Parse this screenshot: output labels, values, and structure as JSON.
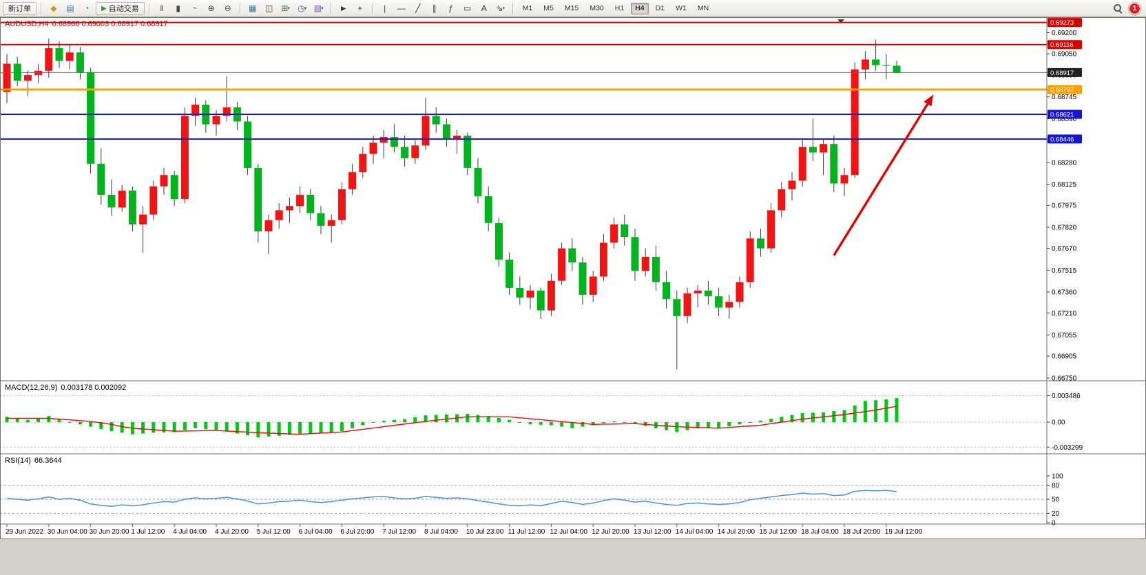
{
  "toolbar": {
    "items": [
      {
        "type": "button",
        "name": "new-order-button",
        "label": "新订单"
      },
      {
        "type": "sep"
      },
      {
        "type": "icon",
        "name": "market-watch-icon",
        "glyph": "◆",
        "color": "#d09a1e"
      },
      {
        "type": "icon",
        "name": "data-window-icon",
        "glyph": "▤",
        "color": "#3a6ea5"
      },
      {
        "type": "icon",
        "name": "navigator-icon",
        "glyph": "◔",
        "color": "#2e8b8b"
      },
      {
        "type": "button",
        "name": "autotrading-button",
        "glyph": "▶",
        "glyph_color": "#21a121",
        "label": "自动交易"
      },
      {
        "type": "sep"
      },
      {
        "type": "icon",
        "name": "bar-chart-icon",
        "glyph": "‖",
        "color": "#444444"
      },
      {
        "type": "icon",
        "name": "candlestick-chart-icon",
        "glyph": "▮",
        "color": "#444444"
      },
      {
        "type": "icon",
        "name": "line-chart-icon",
        "glyph": "~",
        "color": "#444444"
      },
      {
        "type": "icon",
        "name": "zoom-in-icon",
        "glyph": "⊕",
        "color": "#444444"
      },
      {
        "type": "icon",
        "name": "zoom-out-icon",
        "glyph": "⊖",
        "color": "#444444"
      },
      {
        "type": "sep"
      },
      {
        "type": "icon",
        "name": "tile-windows-icon",
        "glyph": "▦",
        "color": "#3a6ea5"
      },
      {
        "type": "icon",
        "name": "cascade-windows-icon",
        "glyph": "◫",
        "color": "#444444"
      },
      {
        "type": "icon",
        "name": "new-chart-icon",
        "glyph": "⊞",
        "color": "#2a7d2a",
        "caret": true
      },
      {
        "type": "icon",
        "name": "period-icon",
        "glyph": "◷",
        "color": "#2e6da4",
        "caret": true
      },
      {
        "type": "icon",
        "name": "template-icon",
        "glyph": "▧",
        "color": "#6a5acd",
        "caret": true
      },
      {
        "type": "sep"
      },
      {
        "type": "icon",
        "name": "cursor-icon",
        "glyph": "►",
        "color": "#333333"
      },
      {
        "type": "icon",
        "name": "crosshair-icon",
        "glyph": "+",
        "color": "#333333"
      },
      {
        "type": "sep"
      },
      {
        "type": "icon",
        "name": "vertical-line-icon",
        "glyph": "|",
        "color": "#333333"
      },
      {
        "type": "icon",
        "name": "horizontal-line-icon",
        "glyph": "—",
        "color": "#333333"
      },
      {
        "type": "icon",
        "name": "trendline-icon",
        "glyph": "╱",
        "color": "#333333"
      },
      {
        "type": "icon",
        "name": "channel-icon",
        "glyph": "∥",
        "color": "#333333"
      },
      {
        "type": "icon",
        "name": "fibonacci-icon",
        "glyph": "ƒ",
        "color": "#333333"
      },
      {
        "type": "icon",
        "name": "shapes-icon",
        "glyph": "▭",
        "color": "#333333"
      },
      {
        "type": "icon",
        "name": "text-label-icon",
        "glyph": "A",
        "color": "#333333"
      },
      {
        "type": "icon",
        "name": "arrows-icon",
        "glyph": "⇘",
        "color": "#333333",
        "caret": true
      },
      {
        "type": "sep"
      },
      {
        "type": "timeframes"
      }
    ],
    "timeframes": [
      "M1",
      "M5",
      "M15",
      "M30",
      "H1",
      "H4",
      "D1",
      "W1",
      "MN"
    ],
    "active_timeframe": "H4",
    "notification_count": "1"
  },
  "chart": {
    "title_symbol": "AUDUSD,H4",
    "title_ohlc": "0.68966 0.69003 0.68917 0.68917",
    "macd_label": "MACD(12,26,9)",
    "macd_values": "0.003178 0.002092",
    "rsi_label": "RSI(14)",
    "rsi_value": "66.3644"
  },
  "chart_data": {
    "type": "candlestick+indicators",
    "symbol": "AUDUSD",
    "period": "H4",
    "colors": {
      "bull": "#f01414",
      "bear": "#00b41e",
      "wick": "#3a3a3a",
      "hist": "#00c814",
      "signal": "#ff0000",
      "rsi": "#4a90e2",
      "axis_text": "#000000"
    },
    "price_axis": {
      "range_top": 0.6931,
      "range_bottom": 0.6673,
      "ticks": [
        "0.69200",
        "0.69050",
        "0.68900",
        "0.68745",
        "0.68590",
        "0.68435",
        "0.68280",
        "0.68125",
        "0.67975",
        "0.67820",
        "0.67670",
        "0.67515",
        "0.67360",
        "0.67210",
        "0.67055",
        "0.66905",
        "0.66750"
      ]
    },
    "hlines": [
      {
        "name": "resistance-line-1",
        "price": 0.69273,
        "label": "0.69273",
        "color": "#d40000",
        "width": 2,
        "badge_bg": "#d40000"
      },
      {
        "name": "resistance-line-2",
        "price": 0.69116,
        "label": "0.69116",
        "color": "#d40000",
        "width": 2,
        "badge_bg": "#d40000"
      },
      {
        "name": "current-price-line",
        "price": 0.68917,
        "label": "0.68917",
        "color": "#666666",
        "width": 1,
        "badge_bg": "#222222"
      },
      {
        "name": "pivot-line-orange",
        "price": 0.68797,
        "label": "0.68797",
        "color": "#ffa000",
        "width": 3,
        "badge_bg": "#ffa000"
      },
      {
        "name": "support-line-blue-1",
        "price": 0.68621,
        "label": "0.68621",
        "color": "#1515d0",
        "width": 2,
        "badge_bg": "#1515d0"
      },
      {
        "name": "support-line-blue-2",
        "price": 0.68446,
        "label": "0.68446",
        "color": "#1515d0",
        "width": 2,
        "badge_bg": "#1515d0"
      }
    ],
    "current_price": 0.68917,
    "arrow": {
      "from_index": 79,
      "from_price": 0.6762,
      "to_index": 88.5,
      "to_price": 0.6876,
      "color": "#e00000"
    },
    "time_labels": [
      "29 Jun 2022",
      "30 Jun 04:00",
      "30 Jun 20:00",
      "1 Jul 12:00",
      "4 Jul 04:00",
      "4 Jul 20:00",
      "5 Jul 12:00",
      "6 Jul 04:00",
      "6 Jul 20:00",
      "7 Jul 12:00",
      "8 Jul 04:00",
      "10 Jul 23:00",
      "11 Jul 12:00",
      "12 Jul 04:00",
      "12 Jul 20:00",
      "13 Jul 12:00",
      "14 Jul 04:00",
      "14 Jul 20:00",
      "15 Jul 12:00",
      "18 Jul 04:00",
      "18 Jul 20:00",
      "19 Jul 12:00"
    ],
    "label_every": 4,
    "candles": [
      [
        0.6878,
        0.6905,
        0.687,
        0.6898
      ],
      [
        0.6898,
        0.6903,
        0.6882,
        0.6886
      ],
      [
        0.6886,
        0.6893,
        0.6875,
        0.689
      ],
      [
        0.689,
        0.6898,
        0.6884,
        0.6893
      ],
      [
        0.6893,
        0.6916,
        0.6888,
        0.6909
      ],
      [
        0.6909,
        0.6914,
        0.6895,
        0.69
      ],
      [
        0.69,
        0.6912,
        0.6894,
        0.6906
      ],
      [
        0.6906,
        0.691,
        0.6887,
        0.6892
      ],
      [
        0.6892,
        0.6895,
        0.682,
        0.6827
      ],
      [
        0.6827,
        0.6838,
        0.6798,
        0.6805
      ],
      [
        0.6805,
        0.6816,
        0.679,
        0.6796
      ],
      [
        0.6796,
        0.6812,
        0.6793,
        0.6808
      ],
      [
        0.6808,
        0.6811,
        0.6779,
        0.6784
      ],
      [
        0.6784,
        0.6797,
        0.6764,
        0.6791
      ],
      [
        0.6791,
        0.6815,
        0.6787,
        0.6811
      ],
      [
        0.6811,
        0.6824,
        0.6805,
        0.6819
      ],
      [
        0.6819,
        0.6822,
        0.6797,
        0.6802
      ],
      [
        0.6802,
        0.6867,
        0.6799,
        0.6861
      ],
      [
        0.6861,
        0.6874,
        0.6854,
        0.6869
      ],
      [
        0.6869,
        0.6872,
        0.6849,
        0.6855
      ],
      [
        0.6855,
        0.6865,
        0.6847,
        0.6861
      ],
      [
        0.6861,
        0.6889,
        0.6857,
        0.6867
      ],
      [
        0.6867,
        0.6871,
        0.6851,
        0.6857
      ],
      [
        0.6857,
        0.6861,
        0.6819,
        0.6824
      ],
      [
        0.6824,
        0.6827,
        0.6771,
        0.6779
      ],
      [
        0.6779,
        0.6791,
        0.6763,
        0.6787
      ],
      [
        0.6787,
        0.6799,
        0.6781,
        0.6794
      ],
      [
        0.6794,
        0.6803,
        0.6785,
        0.6797
      ],
      [
        0.6797,
        0.6811,
        0.6792,
        0.6805
      ],
      [
        0.6805,
        0.6809,
        0.6787,
        0.6792
      ],
      [
        0.6792,
        0.6797,
        0.6777,
        0.6783
      ],
      [
        0.6783,
        0.6791,
        0.6771,
        0.6787
      ],
      [
        0.6787,
        0.6814,
        0.6784,
        0.6809
      ],
      [
        0.6809,
        0.6827,
        0.6805,
        0.6821
      ],
      [
        0.6821,
        0.6839,
        0.6817,
        0.6834
      ],
      [
        0.6834,
        0.6847,
        0.6827,
        0.6842
      ],
      [
        0.6842,
        0.6851,
        0.6831,
        0.6846
      ],
      [
        0.6846,
        0.6855,
        0.6835,
        0.6839
      ],
      [
        0.6839,
        0.6847,
        0.6825,
        0.6831
      ],
      [
        0.6831,
        0.6844,
        0.6827,
        0.684
      ],
      [
        0.684,
        0.6874,
        0.6837,
        0.6861
      ],
      [
        0.6861,
        0.6867,
        0.6849,
        0.6855
      ],
      [
        0.6855,
        0.6859,
        0.6839,
        0.6845
      ],
      [
        0.6845,
        0.6851,
        0.6834,
        0.6847
      ],
      [
        0.6847,
        0.6849,
        0.6819,
        0.6824
      ],
      [
        0.6824,
        0.6831,
        0.6799,
        0.6804
      ],
      [
        0.6804,
        0.6811,
        0.6779,
        0.6785
      ],
      [
        0.6785,
        0.6789,
        0.6754,
        0.6759
      ],
      [
        0.6759,
        0.6764,
        0.6734,
        0.6739
      ],
      [
        0.6739,
        0.6747,
        0.6727,
        0.6732
      ],
      [
        0.6732,
        0.6741,
        0.6724,
        0.6737
      ],
      [
        0.6737,
        0.6739,
        0.6717,
        0.6723
      ],
      [
        0.6723,
        0.6749,
        0.6719,
        0.6744
      ],
      [
        0.6744,
        0.6771,
        0.6741,
        0.6767
      ],
      [
        0.6767,
        0.6774,
        0.6751,
        0.6757
      ],
      [
        0.6757,
        0.6761,
        0.6727,
        0.6734
      ],
      [
        0.6734,
        0.6751,
        0.6729,
        0.6747
      ],
      [
        0.6747,
        0.6777,
        0.6744,
        0.6771
      ],
      [
        0.6771,
        0.6789,
        0.6767,
        0.6784
      ],
      [
        0.6784,
        0.6791,
        0.6769,
        0.6775
      ],
      [
        0.6775,
        0.6781,
        0.6744,
        0.6751
      ],
      [
        0.6751,
        0.6767,
        0.6747,
        0.6761
      ],
      [
        0.6761,
        0.6769,
        0.6737,
        0.6743
      ],
      [
        0.6743,
        0.6751,
        0.6724,
        0.6731
      ],
      [
        0.6731,
        0.6737,
        0.6681,
        0.6719
      ],
      [
        0.6719,
        0.6739,
        0.6714,
        0.6735
      ],
      [
        0.6735,
        0.6741,
        0.6725,
        0.6737
      ],
      [
        0.6737,
        0.6744,
        0.6727,
        0.6733
      ],
      [
        0.6733,
        0.6739,
        0.6719,
        0.6725
      ],
      [
        0.6725,
        0.6734,
        0.6717,
        0.6729
      ],
      [
        0.6729,
        0.6747,
        0.6725,
        0.6743
      ],
      [
        0.6743,
        0.6779,
        0.6739,
        0.6774
      ],
      [
        0.6774,
        0.6781,
        0.6761,
        0.6767
      ],
      [
        0.6767,
        0.6799,
        0.6764,
        0.6794
      ],
      [
        0.6794,
        0.6814,
        0.6789,
        0.6809
      ],
      [
        0.6809,
        0.6821,
        0.6801,
        0.6815
      ],
      [
        0.6815,
        0.6844,
        0.6811,
        0.6839
      ],
      [
        0.6839,
        0.6859,
        0.6829,
        0.6835
      ],
      [
        0.6835,
        0.6845,
        0.6819,
        0.6841
      ],
      [
        0.6841,
        0.6847,
        0.6807,
        0.6813
      ],
      [
        0.6813,
        0.6824,
        0.6804,
        0.6819
      ],
      [
        0.6819,
        0.6899,
        0.6817,
        0.6894
      ],
      [
        0.6894,
        0.6907,
        0.6887,
        0.6901
      ],
      [
        0.6901,
        0.6915,
        0.6893,
        0.6897
      ],
      [
        0.6897,
        0.6905,
        0.6887,
        0.68966
      ],
      [
        0.68966,
        0.69003,
        0.68917,
        0.68917
      ]
    ],
    "macd": {
      "params": "12,26,9",
      "axis": [
        "0.003486",
        "0.00",
        "-0.003299"
      ],
      "histogram": [
        0.0007,
        0.0005,
        0.0003,
        0.00055,
        0.0008,
        0.0004,
        0,
        -0.0003,
        -0.0006,
        -0.0009,
        -0.0012,
        -0.0014,
        -0.0016,
        -0.0015,
        -0.0014,
        -0.00135,
        -0.0013,
        -0.00105,
        -0.0008,
        -0.0009,
        -0.001,
        -0.00125,
        -0.0015,
        -0.00175,
        -0.002,
        -0.0019,
        -0.0018,
        -0.0017,
        -0.0016,
        -0.00155,
        -0.0015,
        -0.00135,
        -0.0012,
        -0.0008,
        -0.0004,
        -0.0001,
        0.0002,
        0.0003,
        0.0004,
        0.00065,
        0.0009,
        0.00095,
        0.001,
        0.00105,
        0.0011,
        0.00095,
        0.0008,
        0.00055,
        0.0003,
        0,
        -0.0003,
        -0.00035,
        -0.0004,
        -0.0006,
        -0.0008,
        -0.0006,
        -0.0004,
        -0.00015,
        0.0001,
        -5e-05,
        -0.0002,
        -0.0005,
        -0.0008,
        -0.00105,
        -0.0013,
        -0.00105,
        -0.0008,
        -0.0008,
        -0.0008,
        -0.00055,
        -0.0003,
        -5e-05,
        0.0002,
        0.00045,
        0.0007,
        0.00095,
        0.0012,
        0.00125,
        0.0013,
        0.00145,
        0.0016,
        0.0022,
        0.0028,
        0.0029,
        0.003,
        0.003178
      ],
      "signal": [
        0.0005,
        0.0005,
        0.0005,
        0.0005,
        0.0005,
        0.0004,
        0.0003,
        0.0002,
        0.0001,
        -0.0001,
        -0.0003,
        -0.0006,
        -0.0008,
        -0.0009,
        -0.001,
        -0.0011,
        -0.0012,
        -0.00118,
        -0.00115,
        -0.00112,
        -0.0011,
        -0.00118,
        -0.00125,
        -0.00132,
        -0.0014,
        -0.00145,
        -0.0015,
        -0.00155,
        -0.0016,
        -0.00152,
        -0.00145,
        -0.00138,
        -0.0013,
        -0.00112,
        -0.00095,
        -0.00078,
        -0.0006,
        -0.00042,
        -0.00025,
        -8e-05,
        0.0001,
        0.00025,
        0.0004,
        0.00055,
        0.0007,
        0.0007,
        0.0007,
        0.0007,
        0.0007,
        0.00057,
        0.00045,
        0.00032,
        0.0002,
        7e-05,
        -5e-05,
        -0.00018,
        -0.0003,
        -0.00027,
        -0.00025,
        -0.00022,
        -0.0002,
        -0.0003,
        -0.0004,
        -0.0005,
        -0.0006,
        -0.00065,
        -0.0007,
        -0.00075,
        -0.0008,
        -0.0007,
        -0.0006,
        -0.0005,
        -0.0004,
        -0.0002,
        0,
        0.0002,
        0.0004,
        0.00055,
        0.0007,
        0.00085,
        0.001,
        0.0012,
        0.0014,
        0.0016,
        0.00185,
        0.002092
      ]
    },
    "rsi": {
      "params": "14",
      "levels": [
        "100",
        "80",
        "50",
        "20",
        "0"
      ],
      "dashed_levels": [
        80,
        50,
        20
      ],
      "values": [
        52,
        50,
        48,
        51,
        55,
        50,
        52,
        48,
        40,
        37,
        35,
        38,
        36,
        38,
        42,
        45,
        44,
        50,
        53,
        51,
        52,
        54,
        51,
        46,
        40,
        42,
        45,
        46,
        48,
        45,
        43,
        45,
        48,
        51,
        53,
        55,
        56,
        53,
        51,
        52,
        56,
        54,
        52,
        53,
        51,
        47,
        44,
        40,
        37,
        36,
        38,
        36,
        41,
        46,
        43,
        39,
        42,
        47,
        51,
        48,
        44,
        46,
        42,
        39,
        37,
        41,
        42,
        40,
        39,
        40,
        43,
        49,
        52,
        55,
        58,
        60,
        63,
        61,
        62,
        58,
        59,
        67,
        69,
        68,
        69,
        66.36
      ]
    }
  }
}
